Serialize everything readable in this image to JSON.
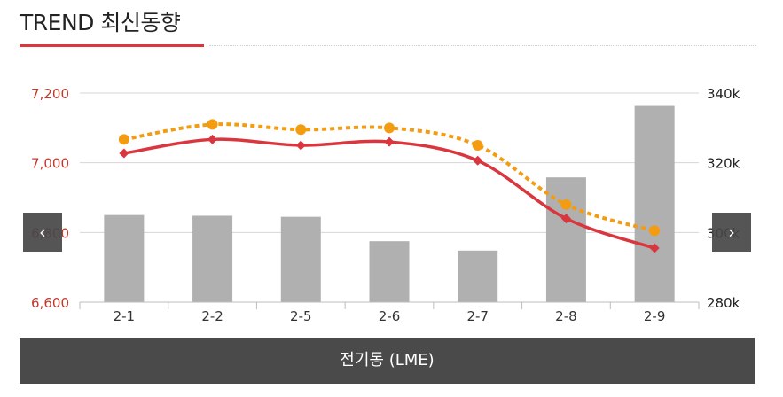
{
  "header": {
    "title": "TREND 최신동향"
  },
  "nav": {
    "prev_label": "‹",
    "next_label": "›",
    "prev_icon": "chevron-left-icon",
    "next_icon": "chevron-right-icon"
  },
  "footer": {
    "label": "전기동 (LME)"
  },
  "chart_data": {
    "type": "bar-line-combo",
    "title": "",
    "categories": [
      "2-1",
      "2-2",
      "2-5",
      "2-6",
      "2-7",
      "2-8",
      "2-9"
    ],
    "left_axis": {
      "range": [
        6600,
        7200
      ],
      "ticks": [
        "7,200",
        "7,000",
        "6,800",
        "6,600"
      ],
      "color": "#c0392b"
    },
    "right_axis": {
      "range": [
        280000,
        340000
      ],
      "ticks": [
        "340k",
        "320k",
        "300k",
        "280k"
      ],
      "color": "#222222"
    },
    "grid": true,
    "series": [
      {
        "type": "bar",
        "axis": "right",
        "color": "#b0b0b0",
        "values": [
          305000,
          304800,
          304500,
          297500,
          294800,
          315800,
          336300
        ]
      },
      {
        "type": "line",
        "axis": "left",
        "color": "#d9363e",
        "marker": "diamond",
        "values": [
          7027,
          7067,
          7050,
          7060,
          7006,
          6840,
          6755
        ]
      },
      {
        "type": "line",
        "axis": "left",
        "color": "#f39c12",
        "marker": "circle",
        "dashed": true,
        "values": [
          7067,
          7110,
          7095,
          7100,
          7050,
          6880,
          6805
        ]
      }
    ]
  }
}
